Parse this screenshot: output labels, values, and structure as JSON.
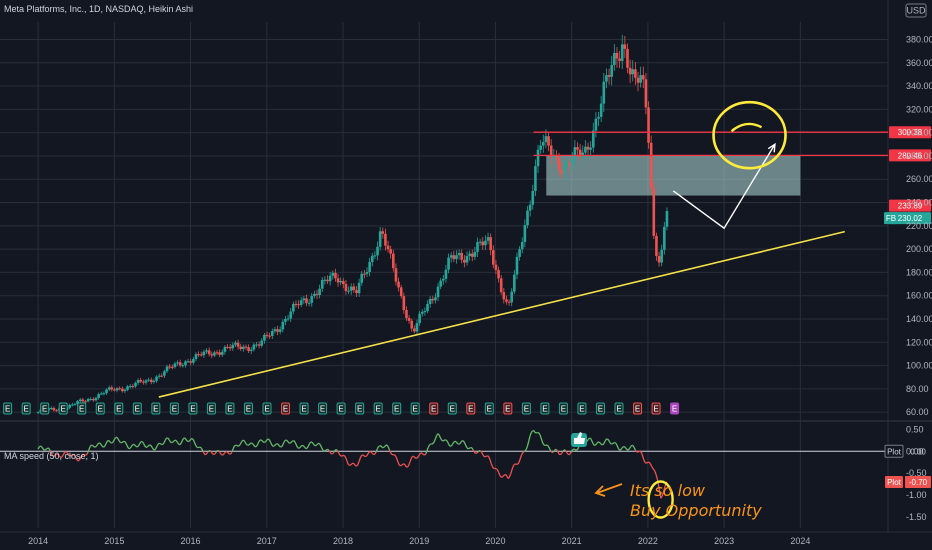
{
  "header": {
    "title": "Meta Platforms, Inc., 1D, NASDAQ, Heikin Ashi",
    "currency": "USD"
  },
  "colors": {
    "background": "#131722",
    "grid": "#2a2e39",
    "up": "#26a69a",
    "down": "#ef5350",
    "ma_up": "#66bb6a",
    "ma_down": "#ef5350",
    "resistance": "#f23645",
    "trendline": "#f5e24a",
    "zone": "#b2dfdb",
    "annotation": "#f7931a",
    "highlight": "#ffeb3b"
  },
  "chart_data": [
    {
      "type": "candlestick",
      "symbol": "FB",
      "x_ticks": [
        "2014",
        "2015",
        "2016",
        "2017",
        "2018",
        "2019",
        "2020",
        "2021",
        "2022",
        "2023",
        "2024"
      ],
      "y_ticks": [
        60,
        80,
        100,
        120,
        140,
        160,
        180,
        200,
        220,
        240,
        260,
        280,
        300,
        320,
        340,
        360,
        380
      ],
      "ylim": [
        55,
        395
      ],
      "price_path": [
        {
          "date": "2014-01",
          "price": 60
        },
        {
          "date": "2014-06",
          "price": 65
        },
        {
          "date": "2014-12",
          "price": 78
        },
        {
          "date": "2015-06",
          "price": 86
        },
        {
          "date": "2015-12",
          "price": 104
        },
        {
          "date": "2016-06",
          "price": 114
        },
        {
          "date": "2016-12",
          "price": 118
        },
        {
          "date": "2017-06",
          "price": 152
        },
        {
          "date": "2017-12",
          "price": 178
        },
        {
          "date": "2018-03",
          "price": 160
        },
        {
          "date": "2018-07",
          "price": 215
        },
        {
          "date": "2018-12",
          "price": 128
        },
        {
          "date": "2019-06",
          "price": 190
        },
        {
          "date": "2019-12",
          "price": 205
        },
        {
          "date": "2020-03",
          "price": 147
        },
        {
          "date": "2020-08",
          "price": 290
        },
        {
          "date": "2020-12",
          "price": 272
        },
        {
          "date": "2021-03",
          "price": 282
        },
        {
          "date": "2021-09",
          "price": 382
        },
        {
          "date": "2021-11",
          "price": 338
        },
        {
          "date": "2021-12",
          "price": 345
        },
        {
          "date": "2022-01",
          "price": 310
        },
        {
          "date": "2022-02",
          "price": 205
        },
        {
          "date": "2022-03",
          "price": 190
        },
        {
          "date": "2022-04",
          "price": 232
        }
      ],
      "levels": [
        {
          "label": "300.38",
          "value": 300.38,
          "color": "#f23645"
        },
        {
          "label": "280.46",
          "value": 280.46,
          "color": "#f23645"
        }
      ],
      "price_labels": [
        {
          "label": "233.89",
          "value": 233.89,
          "color": "#f23645"
        },
        {
          "label": "230.02",
          "value": 230.02,
          "color": "#26a69a"
        }
      ],
      "zone": {
        "from_date": "2020-09",
        "to_date": "2024-01",
        "low": 246,
        "high": 280
      },
      "trendline": [
        {
          "date": "2015-08",
          "price": 73
        },
        {
          "date": "2024-08",
          "price": 215
        }
      ],
      "projection": [
        {
          "date": "2022-05",
          "price": 250
        },
        {
          "date": "2023-01",
          "price": 218
        },
        {
          "date": "2023-09",
          "price": 290
        }
      ],
      "highlight_circle": {
        "date": "2023-05",
        "price": 303
      },
      "earnings": [
        "E",
        "E",
        "E",
        "E",
        "E",
        "E",
        "E",
        "E",
        "E",
        "E",
        "E",
        "E",
        "E",
        "E",
        "E",
        "E",
        "E",
        "E",
        "E",
        "E",
        "E",
        "E",
        "E",
        "E",
        "E",
        "E",
        "E",
        "E",
        "E",
        "E",
        "E",
        "E",
        "E",
        "E",
        "E",
        "E",
        "E"
      ],
      "earnings_flag_colors": [
        "g",
        "g",
        "g",
        "g",
        "g",
        "g",
        "g",
        "g",
        "g",
        "g",
        "g",
        "g",
        "g",
        "g",
        "g",
        "r",
        "g",
        "g",
        "g",
        "g",
        "g",
        "g",
        "g",
        "r",
        "g",
        "r",
        "g",
        "r",
        "g",
        "g",
        "g",
        "g",
        "g",
        "g",
        "r",
        "r",
        "p"
      ]
    },
    {
      "type": "line",
      "title": "MA speed (50, close, 1)",
      "y_ticks": [
        0.5,
        0.0,
        -0.5,
        -1.0,
        -1.5
      ],
      "y_tick_labels": [
        "0.50",
        "0.00",
        "-0.50",
        "-1.00",
        "-1.50"
      ],
      "ylim": [
        -1.75,
        0.6
      ],
      "zero_line": 0.0,
      "series": [
        {
          "name": "Plot",
          "last_value_label": "0.00",
          "value": 0.0
        },
        {
          "name": "Plot",
          "last_value_label": "-0.70",
          "value": -0.7
        }
      ],
      "values_path": [
        {
          "date": "2014-01",
          "value": 0.05
        },
        {
          "date": "2014-07",
          "value": -0.15
        },
        {
          "date": "2014-12",
          "value": 0.25
        },
        {
          "date": "2015-06",
          "value": 0.1
        },
        {
          "date": "2015-12",
          "value": 0.28
        },
        {
          "date": "2016-05",
          "value": -0.1
        },
        {
          "date": "2016-10",
          "value": 0.2
        },
        {
          "date": "2017-04",
          "value": 0.18
        },
        {
          "date": "2017-10",
          "value": 0.1
        },
        {
          "date": "2018-03",
          "value": -0.3
        },
        {
          "date": "2018-07",
          "value": 0.15
        },
        {
          "date": "2018-11",
          "value": -0.35
        },
        {
          "date": "2019-04",
          "value": 0.3
        },
        {
          "date": "2019-10",
          "value": 0.05
        },
        {
          "date": "2020-03",
          "value": -0.65
        },
        {
          "date": "2020-07",
          "value": 0.45
        },
        {
          "date": "2020-11",
          "value": -0.1
        },
        {
          "date": "2021-04",
          "value": 0.25
        },
        {
          "date": "2021-09",
          "value": 0.12
        },
        {
          "date": "2021-12",
          "value": -0.05
        },
        {
          "date": "2022-02",
          "value": -0.4
        },
        {
          "date": "2022-03",
          "value": -1.1
        },
        {
          "date": "2022-04",
          "value": -0.7
        }
      ],
      "annotation": [
        "Its so low",
        "Buy Opportunity"
      ]
    }
  ]
}
